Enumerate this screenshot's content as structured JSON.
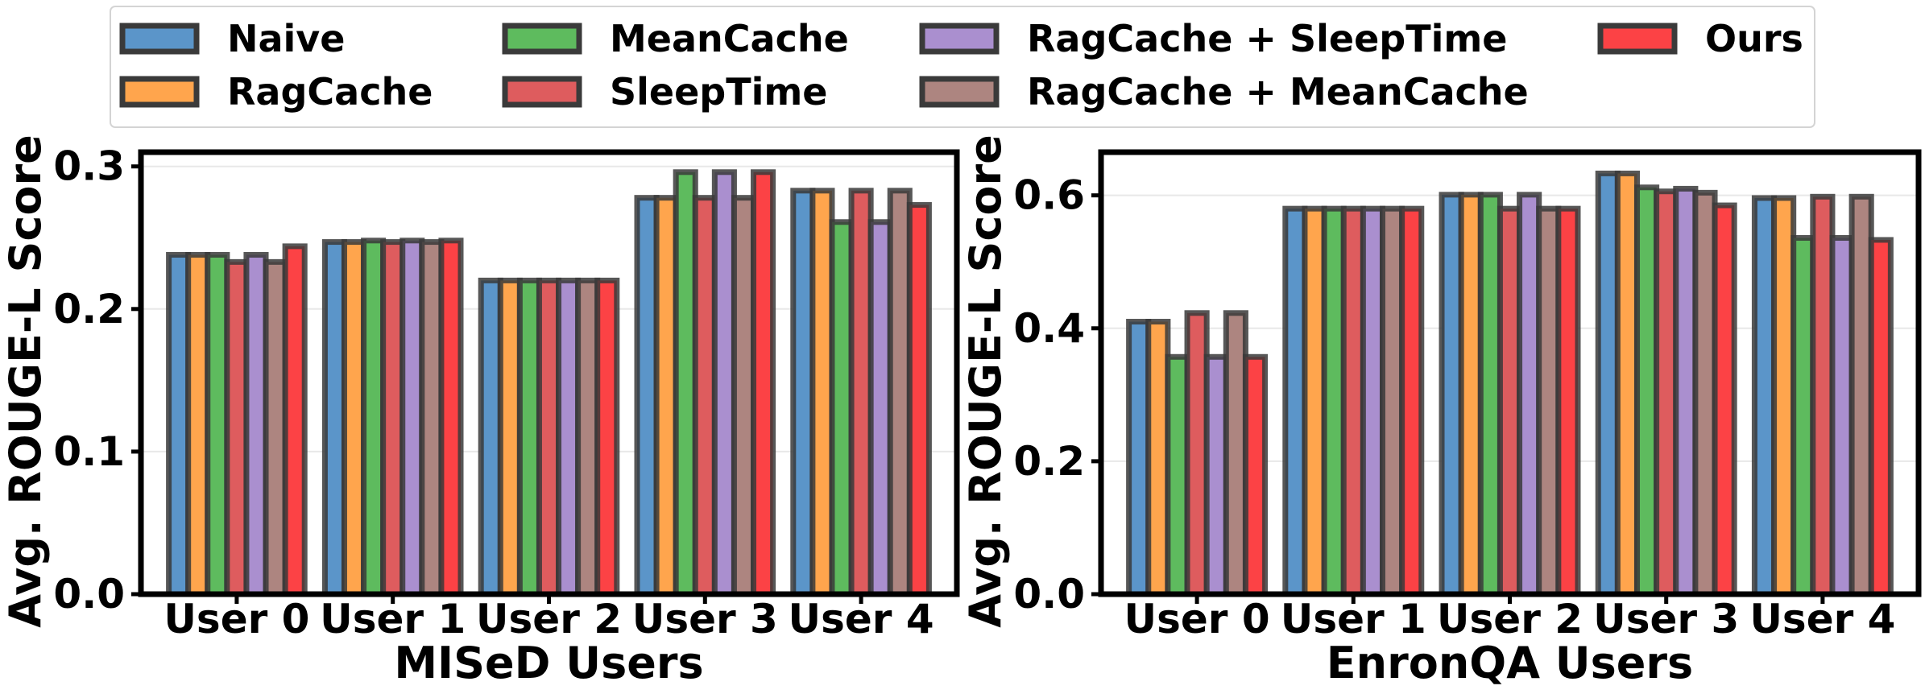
{
  "legend": {
    "location": "top-center",
    "entries": [
      "Naive",
      "RagCache",
      "MeanCache",
      "SleepTime",
      "RagCache + SleepTime",
      "RagCache + MeanCache",
      "Ours"
    ]
  },
  "series_colors": {
    "Naive": "#5b95c9",
    "RagCache": "#ffa54d",
    "MeanCache": "#5ebb5e",
    "SleepTime": "#de5c5e",
    "RagCache + SleepTime": "#aa8fcf",
    "RagCache + MeanCache": "#ad8580",
    "Ours": "#fc4245"
  },
  "chart_data": [
    {
      "type": "bar",
      "title": "",
      "xlabel": "MISeD Users",
      "ylabel": "Avg. ROUGE-L Score",
      "categories": [
        "User 0",
        "User 1",
        "User 2",
        "User 3",
        "User 4"
      ],
      "ylim": [
        0,
        0.31
      ],
      "yticks": [
        0.0,
        0.1,
        0.2,
        0.3
      ],
      "ytick_labels": [
        "0.0",
        "0.1",
        "0.2",
        "0.3"
      ],
      "grid": true,
      "series": [
        {
          "name": "Naive",
          "values": [
            0.238,
            0.247,
            0.22,
            0.278,
            0.283
          ]
        },
        {
          "name": "RagCache",
          "values": [
            0.238,
            0.247,
            0.22,
            0.278,
            0.283
          ]
        },
        {
          "name": "MeanCache",
          "values": [
            0.238,
            0.248,
            0.22,
            0.296,
            0.261
          ]
        },
        {
          "name": "SleepTime",
          "values": [
            0.233,
            0.247,
            0.22,
            0.278,
            0.283
          ]
        },
        {
          "name": "RagCache + SleepTime",
          "values": [
            0.238,
            0.248,
            0.22,
            0.296,
            0.261
          ]
        },
        {
          "name": "RagCache + MeanCache",
          "values": [
            0.233,
            0.247,
            0.22,
            0.278,
            0.283
          ]
        },
        {
          "name": "Ours",
          "values": [
            0.244,
            0.248,
            0.22,
            0.296,
            0.273
          ]
        }
      ]
    },
    {
      "type": "bar",
      "title": "",
      "xlabel": "EnronQA Users",
      "ylabel": "Avg. ROUGE-L Score",
      "categories": [
        "User 0",
        "User 1",
        "User 2",
        "User 3",
        "User 4"
      ],
      "ylim": [
        0,
        0.665
      ],
      "yticks": [
        0.0,
        0.2,
        0.4,
        0.6
      ],
      "ytick_labels": [
        "0.0",
        "0.2",
        "0.4",
        "0.6"
      ],
      "grid": true,
      "series": [
        {
          "name": "Naive",
          "values": [
            0.41,
            0.58,
            0.601,
            0.633,
            0.596
          ]
        },
        {
          "name": "RagCache",
          "values": [
            0.41,
            0.58,
            0.601,
            0.633,
            0.596
          ]
        },
        {
          "name": "MeanCache",
          "values": [
            0.357,
            0.58,
            0.601,
            0.612,
            0.536
          ]
        },
        {
          "name": "SleepTime",
          "values": [
            0.423,
            0.58,
            0.58,
            0.606,
            0.598
          ]
        },
        {
          "name": "RagCache + SleepTime",
          "values": [
            0.357,
            0.58,
            0.601,
            0.61,
            0.536
          ]
        },
        {
          "name": "RagCache + MeanCache",
          "values": [
            0.423,
            0.58,
            0.58,
            0.604,
            0.598
          ]
        },
        {
          "name": "Ours",
          "values": [
            0.357,
            0.58,
            0.58,
            0.585,
            0.533
          ]
        }
      ]
    }
  ]
}
